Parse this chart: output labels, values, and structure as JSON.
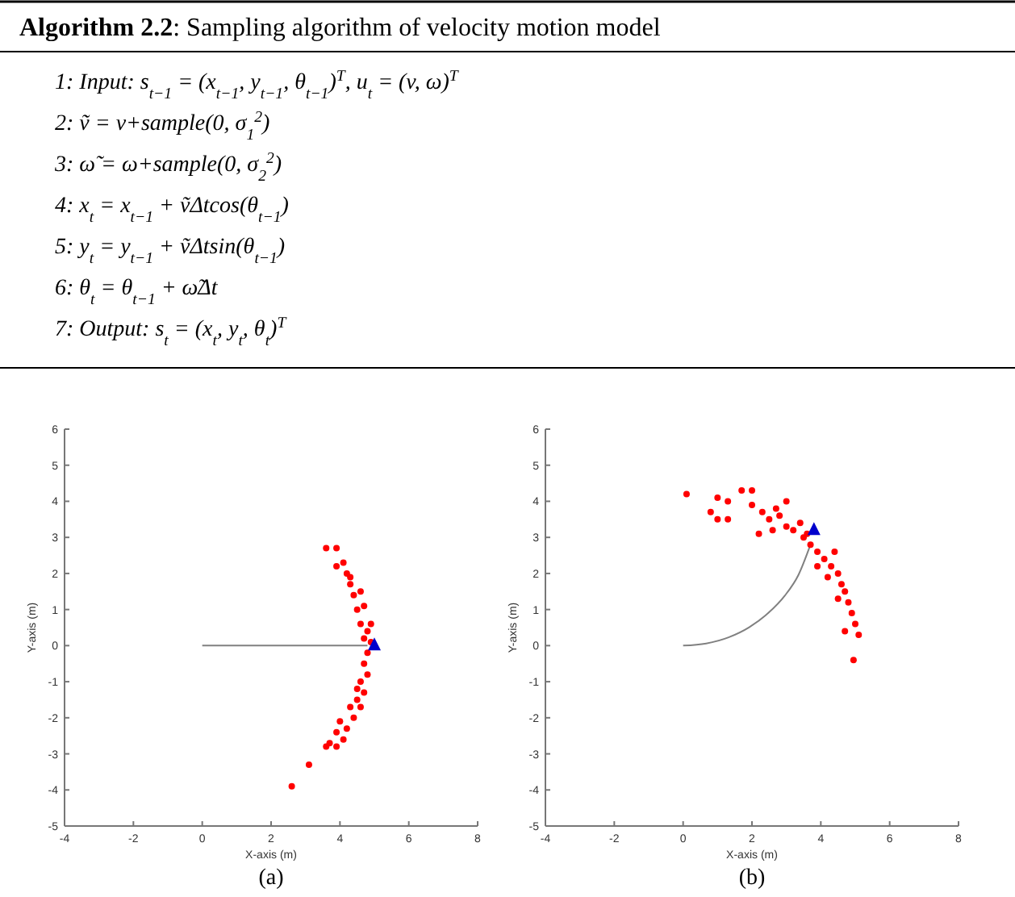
{
  "chart_data": [
    {
      "type": "other",
      "title": "Algorithm 2.2: Sampling algorithm of velocity motion model",
      "annotations": [
        "1: Input: s$_{t−1}$ = (x$_{t−1}$, y$_{t−1}$, θ$_{t−1}$)$^{T}$, u$_{t}$ = (v, ω)$^{T}$",
        "2: ṽ = v+sample(0, σ$_{1}$$^{2}$)",
        "3: ω̃ = ω+sample(0, σ$_{2}$$^{2}$)",
        "4: x$_{t}$ = x$_{t−1}$ + ṽΔtcos(θ$_{t−1}$)",
        "5: y$_{t}$ = y$_{t−1}$ + ṽΔtsin(θ$_{t−1}$)",
        "6: θ$_{t}$ = θ$_{t−1}$ + ω̃Δt",
        "7: Output: s$_{t}$ = (x$_{t}$, y$_{t}$, θ$_{t}$)$^{T}$"
      ]
    },
    {
      "type": "scatter",
      "xlabel": "X-axis (m)",
      "ylabel": "Y-axis (m)",
      "annotations": [
        "(a)"
      ],
      "xlim": [
        -4,
        8
      ],
      "ylim": [
        -5,
        6
      ],
      "xticks": [
        -4,
        -2,
        0,
        2,
        4,
        6,
        8
      ],
      "yticks": [
        -5,
        -4,
        -3,
        -2,
        -1,
        0,
        1,
        2,
        3,
        4,
        5,
        6
      ],
      "series": [
        {
          "type": "line",
          "color": "#808080",
          "marker": "none",
          "x": [
            0,
            4.8
          ],
          "values": [
            0,
            0
          ]
        },
        {
          "type": "scatter",
          "color": "#ff0000",
          "marker": "circle",
          "x": [
            3.6,
            3.9,
            3.9,
            4.1,
            4.2,
            4.3,
            4.4,
            4.6,
            4.5,
            4.7,
            4.6,
            4.8,
            4.7,
            4.9,
            4.8,
            4.7,
            4.8,
            4.6,
            4.7,
            4.5,
            4.6,
            4.3,
            4.4,
            4.2,
            4.0,
            4.1,
            3.9,
            3.7,
            3.6,
            3.9,
            3.1,
            2.6,
            4.9,
            4.5,
            4.3
          ],
          "values": [
            2.7,
            2.7,
            2.2,
            2.3,
            2.0,
            1.7,
            1.4,
            1.5,
            1.0,
            1.1,
            0.6,
            0.4,
            0.2,
            0.1,
            -0.2,
            -0.5,
            -0.8,
            -1.0,
            -1.3,
            -1.5,
            -1.7,
            -1.7,
            -2.0,
            -2.3,
            -2.1,
            -2.6,
            -2.4,
            -2.7,
            -2.8,
            -2.8,
            -3.3,
            -3.9,
            0.6,
            -1.2,
            1.9
          ]
        },
        {
          "type": "scatter",
          "color": "#0000cc",
          "marker": "triangle",
          "x": [
            5.0
          ],
          "values": [
            0
          ]
        }
      ]
    },
    {
      "type": "scatter",
      "xlabel": "X-axis (m)",
      "ylabel": "Y-axis (m)",
      "annotations": [
        "(b)"
      ],
      "xlim": [
        -4,
        8
      ],
      "ylim": [
        -5,
        6
      ],
      "xticks": [
        -4,
        -2,
        0,
        2,
        4,
        6,
        8
      ],
      "yticks": [
        -5,
        -4,
        -3,
        -2,
        -1,
        0,
        1,
        2,
        3,
        4,
        5,
        6
      ],
      "series": [
        {
          "type": "line",
          "color": "#808080",
          "marker": "none",
          "x": [
            0,
            0.67,
            1.32,
            1.92,
            2.47,
            2.95,
            3.35,
            3.7
          ],
          "values": [
            0,
            0.06,
            0.23,
            0.51,
            0.9,
            1.38,
            1.96,
            2.8
          ]
        },
        {
          "type": "scatter",
          "color": "#ff0000",
          "marker": "circle",
          "x": [
            0.1,
            0.8,
            1.0,
            1.3,
            1.0,
            1.3,
            1.7,
            2.0,
            2.0,
            2.3,
            2.5,
            2.8,
            3.0,
            3.0,
            3.2,
            3.5,
            3.7,
            3.9,
            4.1,
            4.3,
            4.5,
            4.6,
            4.7,
            4.8,
            4.9,
            5.0,
            5.1,
            4.95,
            4.5,
            4.2,
            3.9,
            3.6,
            2.6,
            2.2,
            4.7,
            4.4,
            3.4,
            2.7
          ],
          "values": [
            4.2,
            3.7,
            4.1,
            4.0,
            3.5,
            3.5,
            4.3,
            4.3,
            3.9,
            3.7,
            3.5,
            3.6,
            4.0,
            3.3,
            3.2,
            3.0,
            2.8,
            2.6,
            2.4,
            2.2,
            2.0,
            1.7,
            1.5,
            1.2,
            0.9,
            0.6,
            0.3,
            -0.4,
            1.3,
            1.9,
            2.2,
            3.1,
            3.2,
            3.1,
            0.4,
            2.6,
            3.4,
            3.8
          ]
        },
        {
          "type": "scatter",
          "color": "#0000cc",
          "marker": "triangle",
          "x": [
            3.8
          ],
          "values": [
            3.2
          ]
        }
      ]
    }
  ]
}
